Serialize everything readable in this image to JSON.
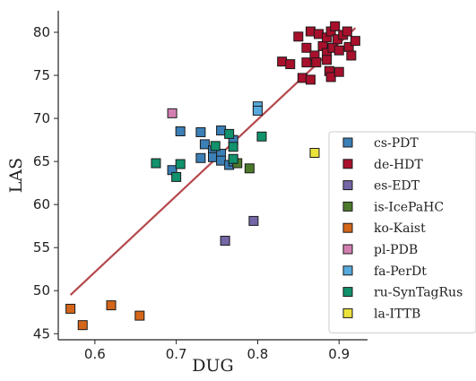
{
  "chart_data": {
    "type": "scatter",
    "xlabel": "DUG",
    "ylabel": "LAS",
    "xlim": [
      0.555,
      0.935
    ],
    "ylim": [
      44.3,
      82.5
    ],
    "xticks": [
      0.6,
      0.7,
      0.8,
      0.9
    ],
    "xtick_labels": [
      "0.6",
      "0.7",
      "0.8",
      "0.9"
    ],
    "yticks": [
      45,
      50,
      55,
      60,
      65,
      70,
      75,
      80
    ],
    "ytick_labels": [
      "45",
      "50",
      "55",
      "60",
      "65",
      "70",
      "75",
      "80"
    ],
    "grid": false,
    "legend_position": "right",
    "fit_line": {
      "x": [
        0.57,
        0.92
      ],
      "y": [
        49.5,
        80.5
      ],
      "color": "#b5484d"
    },
    "series": [
      {
        "name": "cs-PDT",
        "color": "#3b7fb7",
        "points": [
          [
            0.695,
            64.0
          ],
          [
            0.705,
            68.5
          ],
          [
            0.73,
            65.4
          ],
          [
            0.735,
            67.0
          ],
          [
            0.745,
            66.3
          ],
          [
            0.745,
            65.5
          ],
          [
            0.755,
            65.9
          ],
          [
            0.755,
            65.1
          ],
          [
            0.755,
            68.6
          ],
          [
            0.765,
            64.6
          ],
          [
            0.77,
            65.0
          ],
          [
            0.77,
            67.5
          ],
          [
            0.73,
            68.4
          ]
        ]
      },
      {
        "name": "de-HDT",
        "color": "#a8102c",
        "points": [
          [
            0.83,
            76.6
          ],
          [
            0.84,
            76.3
          ],
          [
            0.85,
            79.5
          ],
          [
            0.855,
            74.7
          ],
          [
            0.86,
            78.2
          ],
          [
            0.86,
            76.5
          ],
          [
            0.865,
            80.1
          ],
          [
            0.865,
            74.5
          ],
          [
            0.87,
            77.3
          ],
          [
            0.872,
            76.5
          ],
          [
            0.875,
            79.8
          ],
          [
            0.88,
            78.4
          ],
          [
            0.885,
            79.4
          ],
          [
            0.885,
            77.6
          ],
          [
            0.888,
            75.5
          ],
          [
            0.89,
            80.1
          ],
          [
            0.89,
            74.8
          ],
          [
            0.892,
            78.2
          ],
          [
            0.895,
            80.7
          ],
          [
            0.898,
            79.2
          ],
          [
            0.9,
            77.9
          ],
          [
            0.9,
            75.4
          ],
          [
            0.905,
            79.7
          ],
          [
            0.91,
            80.1
          ],
          [
            0.912,
            78.3
          ],
          [
            0.915,
            77.3
          ],
          [
            0.92,
            79.0
          ],
          [
            0.885,
            76.8
          ]
        ]
      },
      {
        "name": "es-EDT",
        "color": "#7466a7",
        "points": [
          [
            0.76,
            55.8
          ],
          [
            0.795,
            58.1
          ]
        ]
      },
      {
        "name": "is-IcePaHC",
        "color": "#4c7a2b",
        "points": [
          [
            0.775,
            64.8
          ],
          [
            0.79,
            64.2
          ]
        ]
      },
      {
        "name": "ko-Kaist",
        "color": "#d4661a",
        "points": [
          [
            0.57,
            47.9
          ],
          [
            0.585,
            46.0
          ],
          [
            0.62,
            48.3
          ],
          [
            0.655,
            47.1
          ]
        ]
      },
      {
        "name": "pl-PDB",
        "color": "#d27fb2",
        "points": [
          [
            0.695,
            70.6
          ]
        ]
      },
      {
        "name": "fa-PerDt",
        "color": "#56a9dd",
        "points": [
          [
            0.8,
            71.4
          ],
          [
            0.8,
            70.9
          ]
        ]
      },
      {
        "name": "ru-SynTagRus",
        "color": "#11916c",
        "points": [
          [
            0.675,
            64.8
          ],
          [
            0.7,
            63.2
          ],
          [
            0.705,
            64.7
          ],
          [
            0.748,
            66.8
          ],
          [
            0.765,
            68.2
          ],
          [
            0.77,
            66.7
          ],
          [
            0.77,
            65.3
          ],
          [
            0.805,
            67.9
          ]
        ]
      },
      {
        "name": "la-ITTB",
        "color": "#ece23c",
        "points": [
          [
            0.87,
            66.0
          ]
        ]
      }
    ]
  }
}
